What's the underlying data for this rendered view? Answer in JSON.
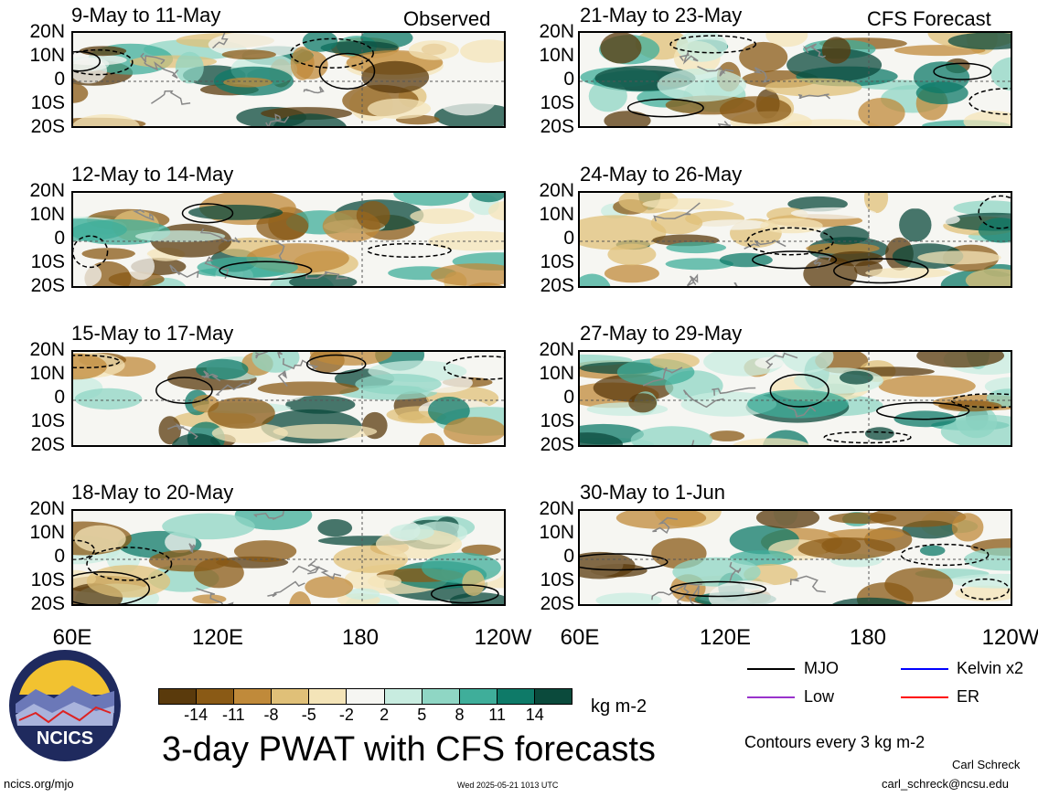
{
  "left_column": {
    "tag": "Observed",
    "panels": [
      {
        "title": "9-May to 11-May"
      },
      {
        "title": "12-May to 14-May"
      },
      {
        "title": "15-May to 17-May"
      },
      {
        "title": "18-May to 20-May"
      }
    ]
  },
  "right_column": {
    "tag": "CFS Forecast",
    "panels": [
      {
        "title": "21-May to 23-May"
      },
      {
        "title": "24-May to 26-May"
      },
      {
        "title": "27-May to 29-May"
      },
      {
        "title": "30-May to 1-Jun"
      }
    ]
  },
  "latitude_labels": [
    "20N",
    "10N",
    "0",
    "10S",
    "20S"
  ],
  "longitude_labels": [
    "60E",
    "120E",
    "180",
    "120W"
  ],
  "colorbar": {
    "colors": [
      "#5a3a0c",
      "#8a5a15",
      "#c08a3a",
      "#e0c078",
      "#f4e4b8",
      "#f6f6f2",
      "#c8ece0",
      "#8fd6c4",
      "#3fae9a",
      "#0e7a68",
      "#0b4a3c"
    ],
    "ticks": [
      "-14",
      "-11",
      "-8",
      "-5",
      "-2",
      "2",
      "5",
      "8",
      "11",
      "14"
    ],
    "unit": "kg m-2"
  },
  "title": "3-day PWAT with CFS forecasts",
  "legend": {
    "items": [
      {
        "label": "MJO",
        "color": "#000000"
      },
      {
        "label": "Kelvin x2",
        "color": "#0000ff"
      },
      {
        "label": "Low",
        "color": "#9933cc"
      },
      {
        "label": "ER",
        "color": "#ff0000"
      }
    ],
    "contour_note": "Contours every 3 kg m-2"
  },
  "footer": {
    "author": "Carl Schreck",
    "email": "carl_schreck@ncsu.edu",
    "url": "ncics.org/mjo",
    "timestamp": "Wed 2025-05-21 1013 UTC",
    "logo_text": "NCICS"
  }
}
